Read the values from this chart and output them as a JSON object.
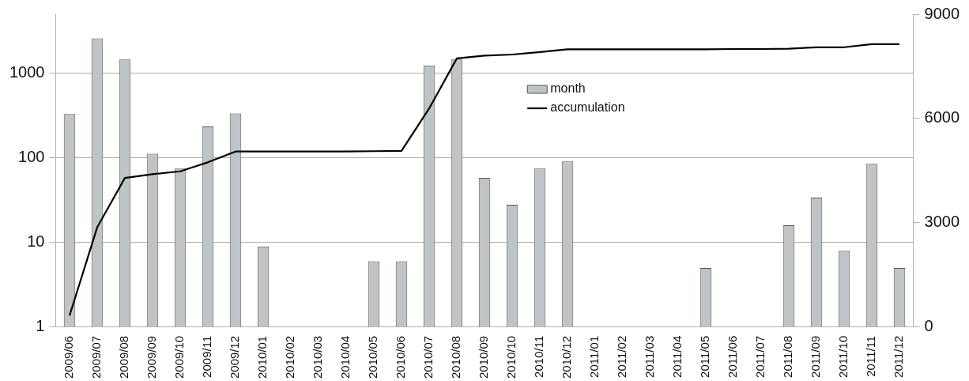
{
  "chart_data": {
    "type": "bar",
    "categories": [
      "2009/06",
      "2009/07",
      "2009/08",
      "2009/09",
      "2009/10",
      "2009/11",
      "2009/12",
      "2010/01",
      "2010/02",
      "2010/03",
      "2010/04",
      "2010/05",
      "2010/06",
      "2010/07",
      "2010/08",
      "2010/09",
      "2010/10",
      "2010/11",
      "2010/12",
      "2011/01",
      "2011/02",
      "2011/03",
      "2011/04",
      "2011/05",
      "2011/06",
      "2011/07",
      "2011/08",
      "2011/09",
      "2011/10",
      "2011/11",
      "2011/12"
    ],
    "series": [
      {
        "name": "month",
        "color": "#c0c4c6",
        "values": [
          330,
          2600,
          1460,
          112,
          75,
          235,
          336,
          9,
          null,
          null,
          null,
          6,
          6,
          1240,
          1460,
          58,
          28,
          75,
          91,
          null,
          null,
          null,
          null,
          5,
          null,
          null,
          16,
          34,
          8,
          85,
          5
        ]
      },
      {
        "name": "accumulation",
        "type": "line",
        "axis": "y2",
        "color": "#000000",
        "values": [
          330,
          2870,
          4290,
          4400,
          4480,
          4740,
          5050,
          5050,
          5050,
          5050,
          5050,
          5060,
          5070,
          6290,
          7730,
          7810,
          7840,
          7910,
          7990,
          7990,
          7990,
          7990,
          7990,
          7990,
          8000,
          8000,
          8010,
          8050,
          8050,
          8140,
          8140
        ]
      }
    ],
    "log": "y",
    "ylim": [
      1,
      5000
    ],
    "yticks": [
      1,
      10,
      100,
      1000
    ],
    "y2lim": [
      0,
      9000
    ],
    "y2ticks": [
      0,
      3000,
      6000,
      9000
    ],
    "grid": "y",
    "legend": "top",
    "marker": "none",
    "line_style": "solid"
  }
}
